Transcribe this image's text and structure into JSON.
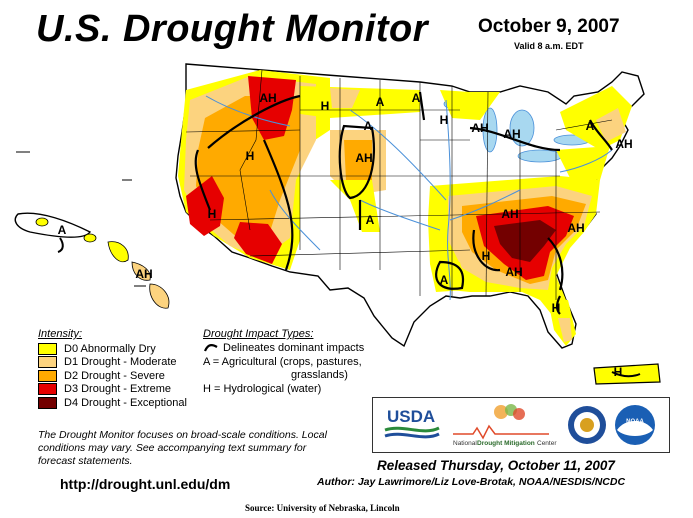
{
  "title": "U.S. Drought Monitor",
  "map_date": "October 9, 2007",
  "valid_note": "Valid 8 a.m. EDT",
  "colors": {
    "D0": "#ffff00",
    "D1": "#fcd37f",
    "D2": "#ffaa00",
    "D3": "#e60000",
    "D4": "#730000",
    "water": "#a8d8f0",
    "rivers": "#4a90d9"
  },
  "legend": {
    "intensity_heading": "Intensity:",
    "intensity": [
      {
        "code": "D0",
        "label": "D0 Abnormally Dry"
      },
      {
        "code": "D1",
        "label": "D1 Drought - Moderate"
      },
      {
        "code": "D2",
        "label": "D2 Drought - Severe"
      },
      {
        "code": "D3",
        "label": "D3 Drought - Extreme"
      },
      {
        "code": "D4",
        "label": "D4 Drought - Exceptional"
      }
    ],
    "impact_heading": "Drought Impact Types:",
    "impact_line": "Delineates dominant impacts",
    "impact_a_1": "A = Agricultural (crops, pastures,",
    "impact_a_2": "grasslands)",
    "impact_h": "H = Hydrological (water)"
  },
  "map_labels": {
    "west_ah": "AH",
    "nw_h": "H",
    "mt_a": "A",
    "ne_mt_a": "A",
    "nd_h": "H",
    "mn_a": "A",
    "wi_ah": "AH",
    "mi_ah": "AH",
    "ny_a": "A",
    "me_ah": "AH",
    "ne_ah": "AH",
    "nev_h": "H",
    "ca_h": "H",
    "co_a": "A",
    "tn_ah": "AH",
    "ga_ah": "AH",
    "se_h": "H",
    "al_ah": "AH",
    "la_a": "A",
    "fl_h": "H",
    "hi_a": "A",
    "hi_ah": "AH",
    "pr_h": "H"
  },
  "disclaimer": "The Drought Monitor focuses on broad-scale conditions. Local conditions may vary. See accompanying text summary for forecast statements.",
  "url": "http://drought.unl.edu/dm",
  "released": "Released Thursday, October 11, 2007",
  "author": "Author:  Jay Lawrimore/Liz Love-Brotak, NOAA/NESDIS/NCDC",
  "source": "Source: University of Nebraska, Lincoln",
  "logos": {
    "usda": "USDA",
    "ndmc_1": "National",
    "ndmc_2": "Drought Mitigation",
    "ndmc_3": "Center",
    "noaa": "NOAA"
  }
}
